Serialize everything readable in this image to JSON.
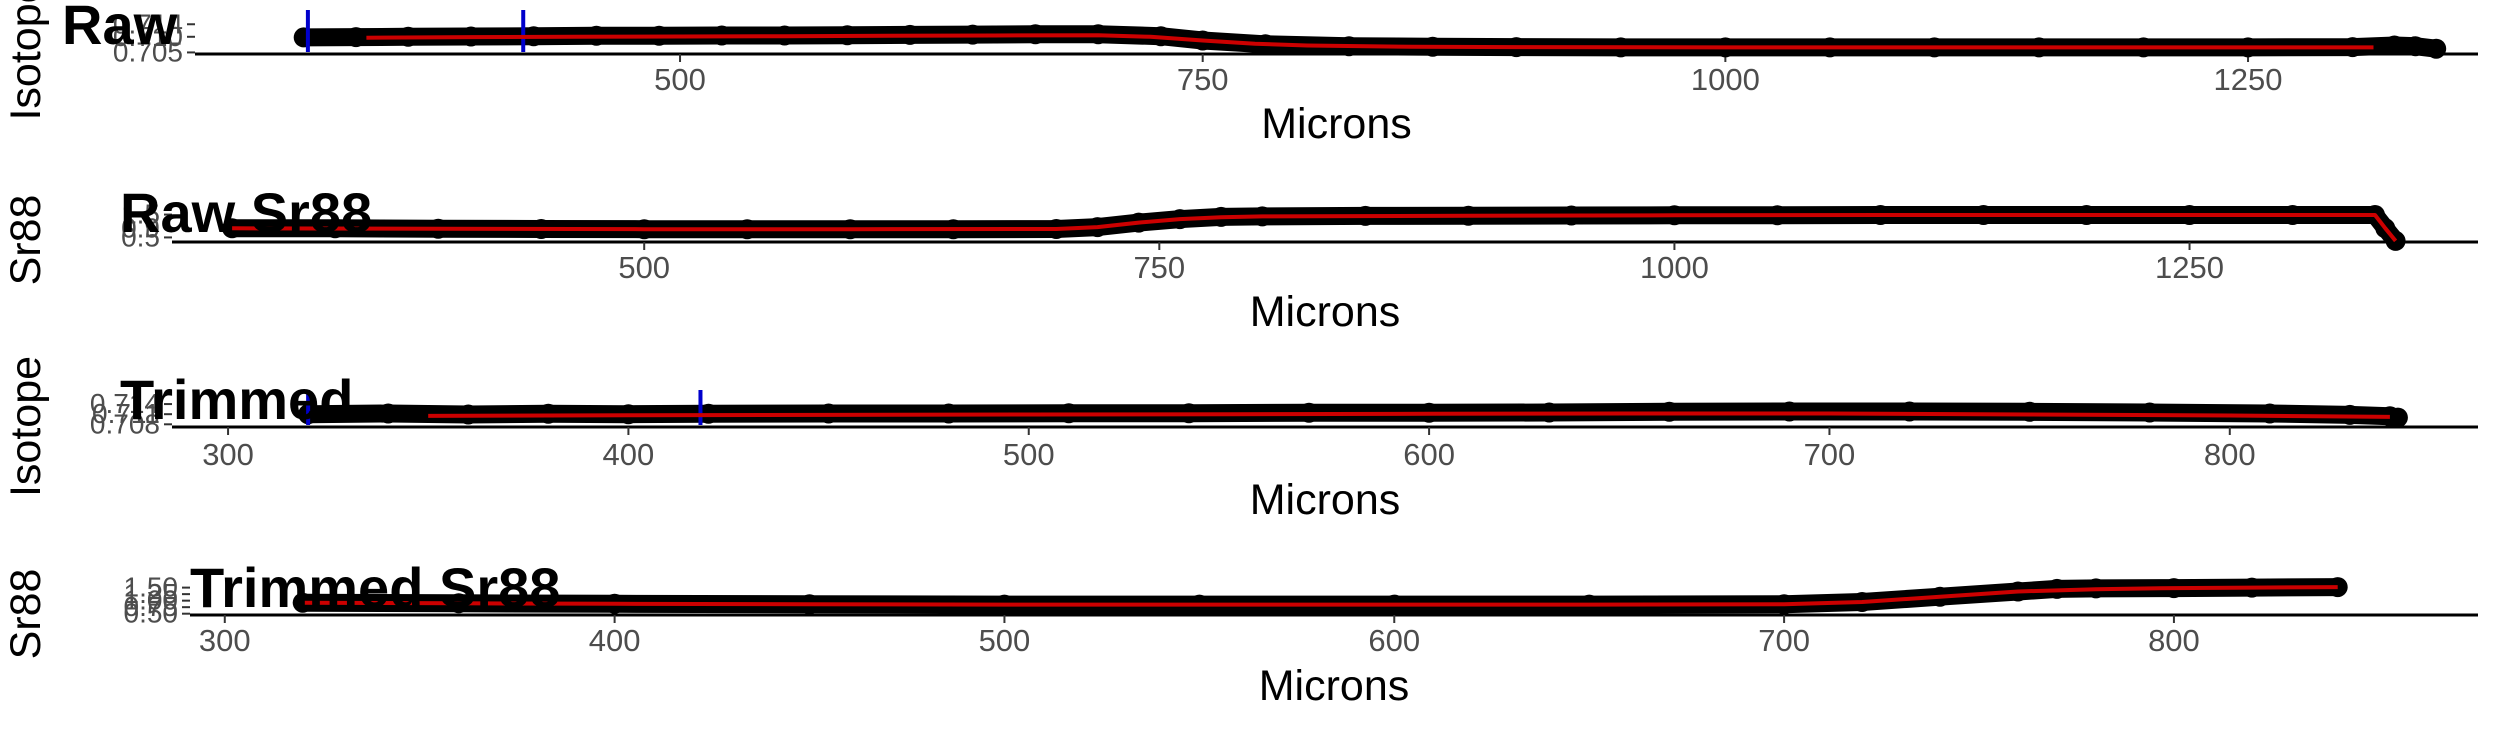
{
  "chart_data": [
    {
      "type": "scatter",
      "title": "Raw",
      "xlabel": "Microns",
      "ylabel": "Isotope",
      "xticks": [
        "500",
        "750",
        "1000",
        "1250"
      ],
      "xtick_values": [
        500,
        750,
        1000,
        1250
      ],
      "yticks": [
        "0.705",
        "0.710",
        "0.714"
      ],
      "ytick_values": [
        0.705,
        0.71,
        0.714
      ],
      "xlim": [
        268,
        1360
      ],
      "ylim": [
        0.7045,
        0.716
      ],
      "grid": false,
      "colors": {
        "points": "#000000",
        "smooth": "#cc0000",
        "marker": "#0000cc"
      },
      "vertical_markers": [
        322,
        425
      ],
      "series": [
        {
          "type": "points",
          "x": [
            320,
            345,
            370,
            400,
            430,
            460,
            490,
            520,
            550,
            580,
            610,
            640,
            670,
            700,
            730,
            750,
            780,
            820,
            860,
            900,
            950,
            1000,
            1050,
            1100,
            1150,
            1200,
            1250,
            1300,
            1320,
            1330,
            1340
          ],
          "y": [
            0.7098,
            0.7099,
            0.71,
            0.7101,
            0.7102,
            0.7103,
            0.7103,
            0.7104,
            0.7104,
            0.7105,
            0.7106,
            0.7107,
            0.7108,
            0.7108,
            0.7102,
            0.7088,
            0.7076,
            0.707,
            0.7068,
            0.7067,
            0.7066,
            0.7066,
            0.7066,
            0.7066,
            0.7066,
            0.7066,
            0.7066,
            0.7067,
            0.7072,
            0.707,
            0.7062
          ]
        },
        {
          "type": "smooth",
          "x": [
            350,
            400,
            450,
            500,
            550,
            600,
            650,
            700,
            725,
            750,
            775,
            800,
            850,
            900,
            1000,
            1100,
            1200,
            1310
          ],
          "y": [
            0.7097,
            0.7099,
            0.71,
            0.7101,
            0.7102,
            0.7103,
            0.7104,
            0.7105,
            0.71,
            0.7088,
            0.7078,
            0.7072,
            0.7068,
            0.7067,
            0.7066,
            0.7066,
            0.7066,
            0.7066
          ]
        }
      ]
    },
    {
      "type": "scatter",
      "title": "Raw Sr88",
      "xlabel": "Microns",
      "ylabel": "Sr88",
      "xticks": [
        "500",
        "750",
        "1000",
        "1250"
      ],
      "xtick_values": [
        500,
        750,
        1000,
        1250
      ],
      "yticks": [
        "0.5",
        "0.9",
        "1.5"
      ],
      "ytick_values": [
        0.5,
        0.9,
        1.5
      ],
      "xlim": [
        265,
        1390
      ],
      "ylim": [
        0.3,
        1.7
      ],
      "grid": false,
      "colors": {
        "points": "#000000",
        "smooth": "#cc0000"
      },
      "series": [
        {
          "type": "points",
          "x": [
            300,
            350,
            400,
            450,
            500,
            550,
            600,
            650,
            700,
            720,
            740,
            760,
            780,
            800,
            850,
            900,
            950,
            1000,
            1050,
            1100,
            1150,
            1200,
            1250,
            1300,
            1340,
            1345,
            1350
          ],
          "y": [
            0.9,
            0.9,
            0.88,
            0.87,
            0.86,
            0.86,
            0.86,
            0.86,
            0.87,
            0.95,
            1.15,
            1.3,
            1.4,
            1.42,
            1.44,
            1.45,
            1.46,
            1.47,
            1.47,
            1.48,
            1.48,
            1.48,
            1.48,
            1.48,
            1.48,
            0.9,
            0.35
          ]
        },
        {
          "type": "smooth",
          "x": [
            300,
            400,
            500,
            600,
            700,
            720,
            740,
            760,
            780,
            800,
            900,
            1000,
            1100,
            1200,
            1300,
            1340,
            1345,
            1350
          ],
          "y": [
            0.9,
            0.88,
            0.86,
            0.86,
            0.87,
            0.95,
            1.15,
            1.3,
            1.38,
            1.42,
            1.45,
            1.47,
            1.48,
            1.48,
            1.48,
            1.48,
            0.9,
            0.35
          ]
        }
      ]
    },
    {
      "type": "scatter",
      "title": "Trimmed",
      "xlabel": "Microns",
      "ylabel": "Isotope",
      "xticks": [
        "300",
        "400",
        "500",
        "600",
        "700",
        "800"
      ],
      "xtick_values": [
        300,
        400,
        500,
        600,
        700,
        800
      ],
      "yticks": [
        "0.708",
        "0.711",
        "0.714"
      ],
      "ytick_values": [
        0.708,
        0.711,
        0.714
      ],
      "xlim": [
        283,
        862
      ],
      "ylim": [
        0.7072,
        0.7158
      ],
      "grid": false,
      "colors": {
        "points": "#000000",
        "smooth": "#cc0000",
        "marker": "#0000cc"
      },
      "vertical_markers": [
        320,
        418
      ],
      "series": [
        {
          "type": "points",
          "x": [
            320,
            340,
            360,
            380,
            400,
            420,
            450,
            480,
            510,
            540,
            570,
            600,
            630,
            660,
            690,
            720,
            750,
            780,
            810,
            830,
            840,
            842
          ],
          "y": [
            0.711,
            0.7112,
            0.7109,
            0.7111,
            0.711,
            0.7111,
            0.7112,
            0.7112,
            0.7113,
            0.7113,
            0.7114,
            0.7114,
            0.7115,
            0.7117,
            0.7118,
            0.7118,
            0.7117,
            0.7115,
            0.7112,
            0.7108,
            0.7104,
            0.71
          ]
        },
        {
          "type": "smooth",
          "x": [
            350,
            400,
            450,
            500,
            550,
            600,
            650,
            700,
            750,
            800,
            840
          ],
          "y": [
            0.7105,
            0.7107,
            0.7108,
            0.7109,
            0.711,
            0.7111,
            0.7112,
            0.7112,
            0.7109,
            0.7106,
            0.7102
          ]
        }
      ]
    },
    {
      "type": "scatter",
      "title": "Trimmed Sr88",
      "xlabel": "Microns",
      "ylabel": "Sr88",
      "xticks": [
        "300",
        "400",
        "500",
        "600",
        "700",
        "800"
      ],
      "xtick_values": [
        300,
        400,
        500,
        600,
        700,
        800
      ],
      "yticks": [
        "0.50",
        "0.75",
        "1.00",
        "1.25",
        "1.50"
      ],
      "ytick_values": [
        0.5,
        0.75,
        1.0,
        1.25,
        1.5
      ],
      "xlim": [
        288,
        878
      ],
      "ylim": [
        0.45,
        1.6
      ],
      "grid": false,
      "colors": {
        "points": "#000000",
        "smooth": "#cc0000"
      },
      "series": [
        {
          "type": "points",
          "x": [
            320,
            360,
            400,
            450,
            500,
            550,
            600,
            650,
            700,
            720,
            740,
            760,
            770,
            780,
            800,
            820,
            842
          ],
          "y": [
            0.92,
            0.9,
            0.88,
            0.86,
            0.85,
            0.85,
            0.85,
            0.85,
            0.86,
            0.95,
            1.15,
            1.35,
            1.45,
            1.47,
            1.48,
            1.5,
            1.52
          ]
        },
        {
          "type": "smooth",
          "x": [
            320,
            360,
            400,
            450,
            500,
            550,
            600,
            650,
            700,
            720,
            740,
            760,
            780,
            800,
            820,
            842
          ],
          "y": [
            0.92,
            0.9,
            0.88,
            0.86,
            0.85,
            0.85,
            0.85,
            0.85,
            0.86,
            0.95,
            1.15,
            1.35,
            1.44,
            1.48,
            1.5,
            1.52
          ]
        }
      ]
    }
  ]
}
